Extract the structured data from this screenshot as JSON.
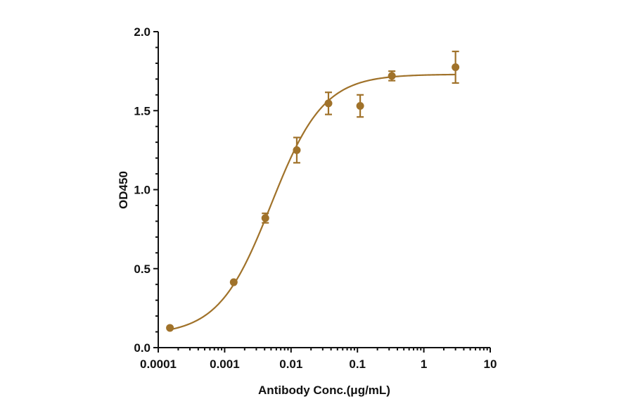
{
  "chart_data": {
    "type": "scatter",
    "title": "",
    "xlabel": "Antibody Conc.(μg/mL)",
    "ylabel": "OD450",
    "xscale": "log",
    "xlim": [
      0.0001,
      10
    ],
    "ylim": [
      0.0,
      2.0
    ],
    "x_ticks": [
      "0.0001",
      "0.001",
      "0.01",
      "0.1",
      "1",
      "10"
    ],
    "y_ticks": [
      "0.0",
      "0.5",
      "1.0",
      "1.5",
      "2.0"
    ],
    "grid": false,
    "legend": null,
    "color": "#A0722A",
    "series": [
      {
        "name": "OD450",
        "x": [
          0.00015,
          0.00137,
          0.0041,
          0.0122,
          0.0366,
          0.11,
          0.33,
          3.0
        ],
        "y": [
          0.125,
          0.414,
          0.82,
          1.25,
          1.546,
          1.53,
          1.72,
          1.775
        ],
        "error": [
          0.0,
          0.0,
          0.03,
          0.08,
          0.07,
          0.07,
          0.03,
          0.1
        ]
      }
    ],
    "fit": {
      "model": "4PL",
      "bottom": 0.08,
      "top": 1.73,
      "ec50": 0.005,
      "hill": 1.1
    }
  }
}
